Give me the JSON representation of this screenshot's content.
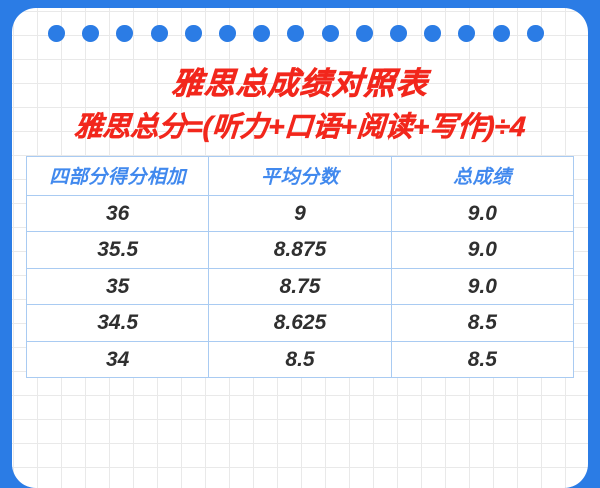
{
  "page": {
    "frame_color": "#2B7CE5",
    "accent_red": "#F2271C",
    "header_blue": "#4189EE",
    "table_border_blue": "#A9CBF2",
    "data_text_color": "#2F2F2F"
  },
  "decor": {
    "dot_count": 15,
    "dot_color": "#2B7CE5"
  },
  "title": "雅思总成绩对照表",
  "formula": "雅思总分=(听力+口语+阅读+写作)÷4",
  "table": {
    "headers": [
      "四部分得分相加",
      "平均分数",
      "总成绩"
    ],
    "rows": [
      [
        "36",
        "9",
        "9.0"
      ],
      [
        "35.5",
        "8.875",
        "9.0"
      ],
      [
        "35",
        "8.75",
        "9.0"
      ],
      [
        "34.5",
        "8.625",
        "8.5"
      ],
      [
        "34",
        "8.5",
        "8.5"
      ]
    ]
  }
}
